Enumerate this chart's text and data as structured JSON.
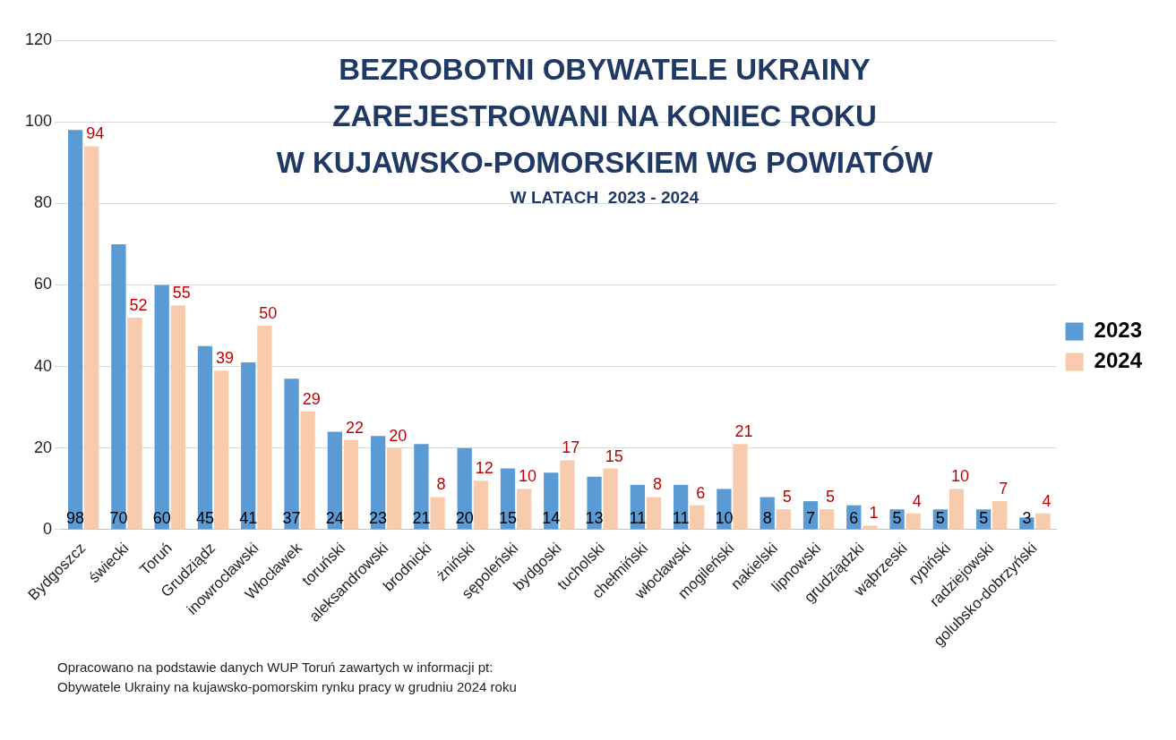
{
  "chart_data": {
    "type": "bar",
    "title": "BEZROBOTNI OBYWATELE UKRAINY\nZAREJESTROWANI NA KONIEC ROKU\nW KUJAWSKO-POMORSKIEM WG POWIATÓW",
    "subtitle": "W LATACH  2023 - 2024",
    "categories": [
      "Bydgoszcz",
      "świecki",
      "Toruń",
      "Grudziądz",
      "inowrocławski",
      "Włocławek",
      "toruński",
      "aleksandrowski",
      "brodnicki",
      "żniński",
      "sępoleński",
      "bydgoski",
      "tucholski",
      "chełmiński",
      "włocławski",
      "mogileński",
      "nakielski",
      "lipnowski",
      "grudziądzki",
      "wąbrzeski",
      "rypiński",
      "radziejowski",
      "golubsko-dobrzyński"
    ],
    "series": [
      {
        "name": "2023",
        "color": "#5b9bd5",
        "values": [
          98,
          70,
          60,
          45,
          41,
          37,
          24,
          23,
          21,
          20,
          15,
          14,
          13,
          11,
          11,
          10,
          8,
          7,
          6,
          5,
          5,
          5,
          3
        ]
      },
      {
        "name": "2024",
        "color": "#f8cbad",
        "values": [
          94,
          52,
          55,
          39,
          50,
          29,
          22,
          20,
          8,
          12,
          10,
          17,
          15,
          8,
          6,
          21,
          5,
          5,
          1,
          4,
          10,
          7,
          4
        ]
      }
    ],
    "ylim": [
      0,
      120
    ],
    "yticks": [
      0,
      20,
      40,
      60,
      80,
      100,
      120
    ],
    "grid": "y",
    "legend": "right",
    "data_labels": true,
    "annotations": [
      "Opracowano na podstawie danych WUP Toruń zawartych w  informacji pt:",
      "Obywatele Ukrainy na kujawsko-pomorskim rynku pracy w grudniu 2024 roku"
    ]
  }
}
